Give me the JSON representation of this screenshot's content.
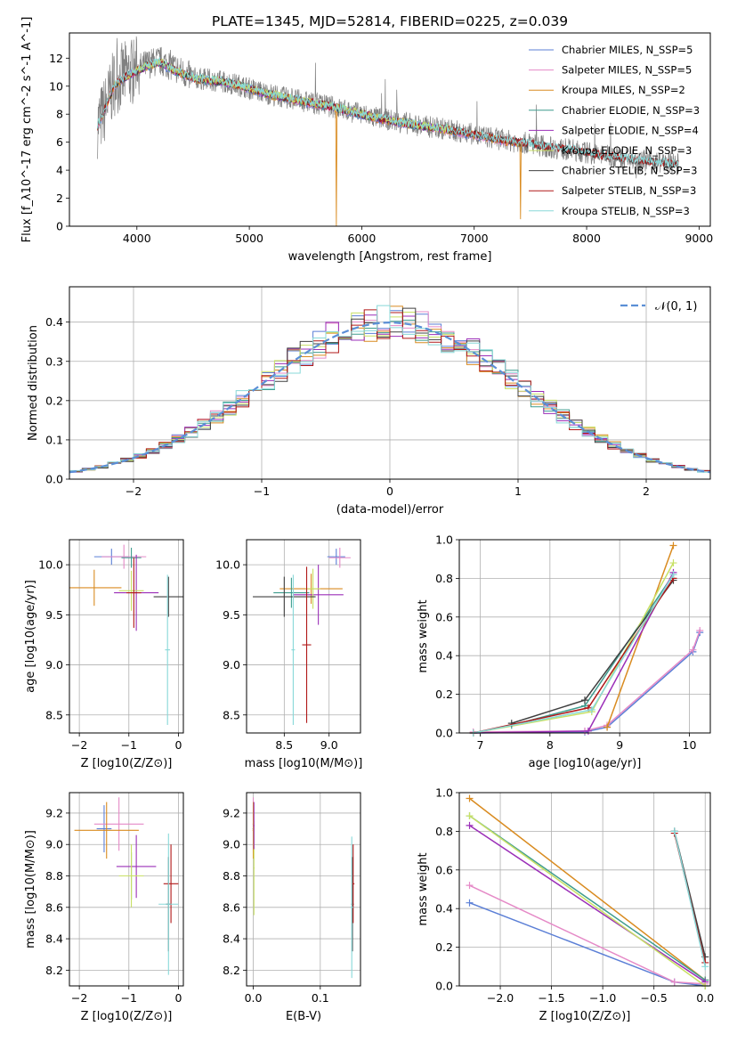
{
  "figure_title": "PLATE=1345, MJD=52814, FIBERID=0225, z=0.039",
  "colors": {
    "chabrier_miles": "#5b7fd6",
    "salpeter_miles": "#e58ac7",
    "kroupa_miles": "#d98b20",
    "chabrier_elodie": "#3f9c8e",
    "salpeter_elodie": "#9b2fb8",
    "kroupa_elodie": "#c8e064",
    "chabrier_stelib": "#404040",
    "salpeter_stelib": "#b01818",
    "kroupa_stelib": "#88d8d8",
    "gaussian": "#5b8fd6",
    "grid": "#b0b0b0"
  },
  "chart_data": [
    {
      "id": "spectrum",
      "type": "line",
      "title": "",
      "xlabel": "wavelength [Angstrom, rest frame]",
      "ylabel": "Flux [f_λ10^-17 erg cm^-2 s^-1 A^-1]",
      "xlim": [
        3400,
        9100
      ],
      "ylim": [
        0,
        13.8
      ],
      "xticks": [
        4000,
        5000,
        6000,
        7000,
        8000,
        9000
      ],
      "yticks": [
        0,
        2,
        4,
        6,
        8,
        10,
        12
      ],
      "grid": false,
      "legend_position": "top-right",
      "legend": [
        {
          "label": "Chabrier MILES, N_SSP=5",
          "color": "#5b7fd6"
        },
        {
          "label": "Salpeter MILES, N_SSP=5",
          "color": "#e58ac7"
        },
        {
          "label": "Kroupa MILES, N_SSP=2",
          "color": "#d98b20"
        },
        {
          "label": "Chabrier ELODIE, N_SSP=3",
          "color": "#3f9c8e"
        },
        {
          "label": "Salpeter ELODIE, N_SSP=4",
          "color": "#9b2fb8"
        },
        {
          "label": "Kroupa ELODIE, N_SSP=3",
          "color": "#c8e064"
        },
        {
          "label": "Chabrier STELIB, N_SSP=3",
          "color": "#404040"
        },
        {
          "label": "Salpeter STELIB, N_SSP=3",
          "color": "#b01818"
        },
        {
          "label": "Kroupa STELIB, N_SSP=3",
          "color": "#88d8d8"
        }
      ],
      "data_curve": {
        "x": [
          3650,
          3700,
          3800,
          3900,
          4000,
          4100,
          4200,
          4300,
          4400,
          4500,
          4700,
          4900,
          5100,
          5300,
          5500,
          5700,
          5900,
          6100,
          6300,
          6500,
          6700,
          6900,
          7100,
          7300,
          7500,
          7700,
          7900,
          8100,
          8300,
          8500,
          8700,
          8820
        ],
        "y": [
          7.3,
          8.0,
          10.3,
          10.8,
          11.2,
          11.6,
          11.8,
          11.5,
          11.0,
          10.6,
          10.4,
          10.1,
          9.6,
          9.2,
          8.9,
          8.6,
          8.2,
          7.8,
          7.5,
          7.2,
          7.0,
          6.7,
          6.4,
          6.1,
          5.9,
          5.6,
          5.4,
          5.1,
          4.9,
          4.7,
          4.5,
          4.4
        ]
      },
      "model_curve": {
        "x": [
          3650,
          3700,
          3800,
          3900,
          4000,
          4100,
          4200,
          4300,
          4400,
          4500,
          4700,
          4900,
          5100,
          5300,
          5500,
          5700,
          5900,
          6100,
          6300,
          6500,
          6700,
          6900,
          7100,
          7300,
          7500,
          7700,
          7900,
          8100,
          8300,
          8500,
          8700,
          8820
        ],
        "y": [
          7.1,
          7.9,
          10.0,
          10.6,
          11.0,
          11.4,
          11.6,
          11.2,
          10.8,
          10.5,
          10.3,
          10.0,
          9.5,
          9.1,
          8.8,
          8.5,
          8.1,
          7.7,
          7.4,
          7.1,
          6.9,
          6.6,
          6.3,
          6.0,
          5.8,
          5.5,
          5.3,
          5.0,
          4.8,
          4.6,
          4.4,
          4.3
        ]
      }
    },
    {
      "id": "residuals",
      "type": "histogram",
      "xlabel": "(data-model)/error",
      "ylabel": "Normed distribution",
      "xlim": [
        -2.5,
        2.5
      ],
      "ylim": [
        0,
        0.49
      ],
      "xticks": [
        -2,
        -1,
        0,
        1,
        2
      ],
      "yticks": [
        0.0,
        0.1,
        0.2,
        0.3,
        0.4
      ],
      "grid": true,
      "legend_position": "top-right",
      "legend": [
        {
          "label": "𝒩(0, 1)",
          "color": "#5b8fd6",
          "style": "dashed"
        }
      ],
      "bin_width": 0.1
    },
    {
      "id": "age_vs_Z",
      "type": "errorbar",
      "xlabel": "Z [log10(Z/Z⊙)]",
      "ylabel": "age [log10(age/yr)]",
      "xlim": [
        -2.2,
        0.1
      ],
      "ylim": [
        8.32,
        10.25
      ],
      "xticks": [
        -2,
        -1,
        0
      ],
      "yticks": [
        8.5,
        9.0,
        9.5,
        10.0
      ],
      "grid": true,
      "points": [
        {
          "x": -1.35,
          "y": 10.08,
          "xerr": 0.35,
          "yerr": 0.08,
          "color": "#5b7fd6"
        },
        {
          "x": -1.1,
          "y": 10.08,
          "xerr": 0.45,
          "yerr": 0.12,
          "color": "#e58ac7"
        },
        {
          "x": -1.7,
          "y": 9.77,
          "xerr": 0.55,
          "yerr": 0.18,
          "color": "#d98b20"
        },
        {
          "x": -0.95,
          "y": 10.07,
          "xerr": 0.2,
          "yerr": 0.1,
          "color": "#3f9c8e"
        },
        {
          "x": -0.85,
          "y": 9.72,
          "xerr": 0.45,
          "yerr": 0.38,
          "color": "#9b2fb8"
        },
        {
          "x": -0.95,
          "y": 9.74,
          "xerr": 0.25,
          "yerr": 0.2,
          "color": "#c8e064"
        },
        {
          "x": -0.2,
          "y": 9.68,
          "xerr": 0.3,
          "yerr": 0.2,
          "color": "#404040"
        },
        {
          "x": -0.9,
          "y": 9.72,
          "xerr": 0.15,
          "yerr": 0.35,
          "color": "#b01818"
        },
        {
          "x": -0.22,
          "y": 9.15,
          "xerr": 0.05,
          "yerr": 0.75,
          "color": "#88d8d8"
        }
      ]
    },
    {
      "id": "age_vs_mass",
      "type": "errorbar",
      "xlabel": "mass [log10(M/M⊙)]",
      "ylabel": "",
      "xlim": [
        8.08,
        9.35
      ],
      "ylim": [
        8.32,
        10.25
      ],
      "xticks": [
        8.5,
        9.0
      ],
      "yticks": [
        8.5,
        9.0,
        9.5,
        10.0
      ],
      "grid": true,
      "points": [
        {
          "x": 9.08,
          "y": 10.08,
          "xerr": 0.1,
          "yerr": 0.08,
          "color": "#5b7fd6"
        },
        {
          "x": 9.12,
          "y": 10.07,
          "xerr": 0.12,
          "yerr": 0.1,
          "color": "#e58ac7"
        },
        {
          "x": 8.8,
          "y": 9.76,
          "xerr": 0.35,
          "yerr": 0.15,
          "color": "#d98b20"
        },
        {
          "x": 8.58,
          "y": 9.72,
          "xerr": 0.2,
          "yerr": 0.15,
          "color": "#3f9c8e"
        },
        {
          "x": 8.88,
          "y": 9.7,
          "xerr": 0.28,
          "yerr": 0.3,
          "color": "#9b2fb8"
        },
        {
          "x": 8.82,
          "y": 9.76,
          "xerr": 0.08,
          "yerr": 0.2,
          "color": "#c8e064"
        },
        {
          "x": 8.5,
          "y": 9.68,
          "xerr": 0.35,
          "yerr": 0.2,
          "color": "#404040"
        },
        {
          "x": 8.75,
          "y": 9.2,
          "xerr": 0.05,
          "yerr": 0.78,
          "color": "#b01818"
        },
        {
          "x": 8.6,
          "y": 9.15,
          "xerr": 0.02,
          "yerr": 0.75,
          "color": "#88d8d8"
        }
      ]
    },
    {
      "id": "massweight_vs_age",
      "type": "line",
      "xlabel": "age [log10(age/yr)]",
      "ylabel": "mass weight",
      "xlim": [
        6.7,
        10.3
      ],
      "ylim": [
        0,
        1.0
      ],
      "xticks": [
        7,
        8,
        9,
        10
      ],
      "yticks": [
        0.0,
        0.2,
        0.4,
        0.6,
        0.8,
        1.0
      ],
      "grid": true,
      "series": [
        {
          "color": "#5b7fd6",
          "x": [
            6.9,
            8.5,
            8.82,
            10.05,
            10.15
          ],
          "y": [
            0.0,
            0.005,
            0.03,
            0.42,
            0.52
          ]
        },
        {
          "color": "#e58ac7",
          "x": [
            6.9,
            8.5,
            8.82,
            10.05,
            10.15
          ],
          "y": [
            0.005,
            0.01,
            0.04,
            0.43,
            0.53
          ]
        },
        {
          "color": "#d98b20",
          "x": [
            8.82,
            9.77
          ],
          "y": [
            0.03,
            0.97
          ]
        },
        {
          "color": "#3f9c8e",
          "x": [
            7.45,
            8.5,
            9.77
          ],
          "y": [
            0.04,
            0.14,
            0.82
          ]
        },
        {
          "color": "#9b2fb8",
          "x": [
            6.9,
            8.55,
            9.77
          ],
          "y": [
            0.0,
            0.01,
            0.83
          ]
        },
        {
          "color": "#c8e064",
          "x": [
            6.9,
            8.6,
            9.77
          ],
          "y": [
            0.0,
            0.11,
            0.88
          ]
        },
        {
          "color": "#404040",
          "x": [
            7.45,
            8.5,
            9.77
          ],
          "y": [
            0.05,
            0.17,
            0.79
          ]
        },
        {
          "color": "#b01818",
          "x": [
            6.9,
            8.55,
            9.77
          ],
          "y": [
            0.0,
            0.13,
            0.8
          ]
        },
        {
          "color": "#88d8d8",
          "x": [
            6.9,
            8.6,
            9.77
          ],
          "y": [
            0.0,
            0.12,
            0.82
          ]
        }
      ]
    },
    {
      "id": "mass_vs_Z",
      "type": "errorbar",
      "xlabel": "Z [log10(Z/Z⊙)]",
      "ylabel": "mass [log10(M/M⊙)]",
      "xlim": [
        -2.2,
        0.1
      ],
      "ylim": [
        8.1,
        9.33
      ],
      "xticks": [
        -2,
        -1,
        0
      ],
      "yticks": [
        8.2,
        8.4,
        8.6,
        8.8,
        9.0,
        9.2
      ],
      "grid": true,
      "points": [
        {
          "x": -1.5,
          "y": 9.1,
          "xerr": 0.15,
          "yerr": 0.15,
          "color": "#5b7fd6"
        },
        {
          "x": -1.2,
          "y": 9.13,
          "xerr": 0.5,
          "yerr": 0.17,
          "color": "#e58ac7"
        },
        {
          "x": -1.45,
          "y": 9.09,
          "xerr": 0.65,
          "yerr": 0.18,
          "color": "#d98b20"
        },
        {
          "x": -0.95,
          "y": 8.8,
          "xerr": 0.2,
          "yerr": 0.15,
          "color": "#3f9c8e"
        },
        {
          "x": -0.85,
          "y": 8.86,
          "xerr": 0.4,
          "yerr": 0.2,
          "color": "#9b2fb8"
        },
        {
          "x": -0.95,
          "y": 8.8,
          "xerr": 0.25,
          "yerr": 0.2,
          "color": "#c8e064"
        },
        {
          "x": -0.2,
          "y": 8.62,
          "xerr": 0.05,
          "yerr": 0.3,
          "color": "#404040"
        },
        {
          "x": -0.15,
          "y": 8.75,
          "xerr": 0.15,
          "yerr": 0.25,
          "color": "#b01818"
        },
        {
          "x": -0.2,
          "y": 8.62,
          "xerr": 0.2,
          "yerr": 0.45,
          "color": "#88d8d8"
        }
      ]
    },
    {
      "id": "mass_vs_ebv",
      "type": "errorbar",
      "xlabel": "E(B-V)",
      "ylabel": "",
      "xlim": [
        -0.01,
        0.16
      ],
      "ylim": [
        8.1,
        9.33
      ],
      "xticks": [
        0.0,
        0.1
      ],
      "yticks": [
        8.2,
        8.4,
        8.6,
        8.8,
        9.0,
        9.2
      ],
      "grid": true,
      "points": [
        {
          "x": 0.0,
          "y": 9.1,
          "xerr": 0.001,
          "yerr": 0.15,
          "color": "#5b7fd6"
        },
        {
          "x": 0.0,
          "y": 9.13,
          "xerr": 0.001,
          "yerr": 0.17,
          "color": "#e58ac7"
        },
        {
          "x": 0.0,
          "y": 9.09,
          "xerr": 0.001,
          "yerr": 0.18,
          "color": "#d98b20"
        },
        {
          "x": 0.001,
          "y": 8.85,
          "xerr": 0.001,
          "yerr": 0.3,
          "color": "#c8e064"
        },
        {
          "x": 0.001,
          "y": 9.12,
          "xerr": 0.001,
          "yerr": 0.15,
          "color": "#9b2fb8"
        },
        {
          "x": 0.148,
          "y": 8.62,
          "xerr": 0.002,
          "yerr": 0.3,
          "color": "#404040"
        },
        {
          "x": 0.149,
          "y": 8.75,
          "xerr": 0.002,
          "yerr": 0.25,
          "color": "#b01818"
        },
        {
          "x": 0.147,
          "y": 8.6,
          "xerr": 0.002,
          "yerr": 0.45,
          "color": "#88d8d8"
        }
      ]
    },
    {
      "id": "massweight_vs_Z",
      "type": "line",
      "xlabel": "Z [log10(Z/Z⊙)]",
      "ylabel": "mass weight",
      "xlim": [
        -2.4,
        0.05
      ],
      "ylim": [
        0,
        1.0
      ],
      "xticks": [
        -2.0,
        -1.5,
        -1.0,
        -0.5,
        0.0
      ],
      "yticks": [
        0.0,
        0.2,
        0.4,
        0.6,
        0.8,
        1.0
      ],
      "grid": true,
      "series": [
        {
          "color": "#5b7fd6",
          "x": [
            -2.3,
            -0.3,
            0.0
          ],
          "y": [
            0.43,
            0.02,
            0.0
          ]
        },
        {
          "color": "#e58ac7",
          "x": [
            -2.3,
            -0.3,
            0.0
          ],
          "y": [
            0.52,
            0.02,
            0.01
          ]
        },
        {
          "color": "#d98b20",
          "x": [
            -2.3,
            0.0
          ],
          "y": [
            0.97,
            0.03
          ]
        },
        {
          "color": "#3f9c8e",
          "x": [
            -2.3,
            0.0
          ],
          "y": [
            0.88,
            0.03
          ]
        },
        {
          "color": "#9b2fb8",
          "x": [
            -2.3,
            0.0
          ],
          "y": [
            0.83,
            0.02
          ]
        },
        {
          "color": "#c8e064",
          "x": [
            -2.3,
            0.0
          ],
          "y": [
            0.88,
            0.0
          ]
        },
        {
          "color": "#404040",
          "x": [
            -0.3,
            0.0
          ],
          "y": [
            0.8,
            0.15
          ]
        },
        {
          "color": "#b01818",
          "x": [
            -0.3,
            0.0
          ],
          "y": [
            0.79,
            0.12
          ]
        },
        {
          "color": "#88d8d8",
          "x": [
            -0.3,
            0.0
          ],
          "y": [
            0.8,
            0.1
          ]
        }
      ]
    }
  ]
}
